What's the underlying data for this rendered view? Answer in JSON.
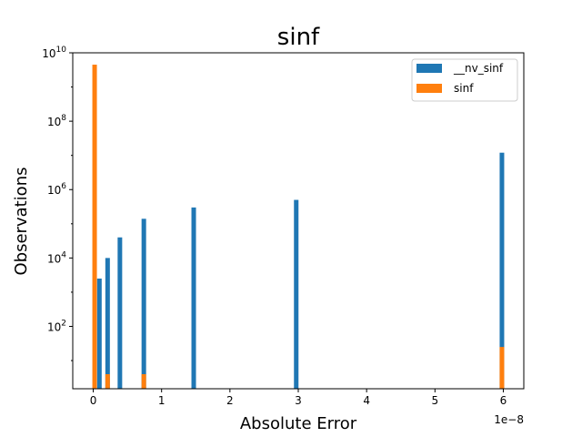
{
  "chart_data": {
    "type": "bar",
    "title": "sinf",
    "xlabel": "Absolute Error",
    "ylabel": "Observations",
    "x_offset_label": "1e−8",
    "x_ticks": [
      "0",
      "1",
      "2",
      "3",
      "4",
      "5",
      "6"
    ],
    "y_ticks": [
      {
        "base": "10",
        "exp": "2"
      },
      {
        "base": "10",
        "exp": "4"
      },
      {
        "base": "10",
        "exp": "6"
      },
      {
        "base": "10",
        "exp": "8"
      },
      {
        "base": "10",
        "exp": "10"
      }
    ],
    "y_scale": "log",
    "ylim": [
      1.5,
      10000000000
    ],
    "xlim": [
      -0.3,
      6.3
    ],
    "grid": false,
    "legend_position": "top-right",
    "series": [
      {
        "name": "__nv_sinf",
        "color": "#1f77b4",
        "points": [
          {
            "x": 0.09,
            "y": 2500
          },
          {
            "x": 0.21,
            "y": 10000
          },
          {
            "x": 0.39,
            "y": 40000
          },
          {
            "x": 0.74,
            "y": 140000
          },
          {
            "x": 1.47,
            "y": 300000
          },
          {
            "x": 2.97,
            "y": 500000
          },
          {
            "x": 5.98,
            "y": 12000000
          }
        ]
      },
      {
        "name": "sinf",
        "color": "#ff7f0e",
        "points": [
          {
            "x": 0.02,
            "y": 4500000000
          },
          {
            "x": 0.21,
            "y": 4
          },
          {
            "x": 0.74,
            "y": 4
          },
          {
            "x": 5.98,
            "y": 25
          }
        ]
      }
    ]
  }
}
